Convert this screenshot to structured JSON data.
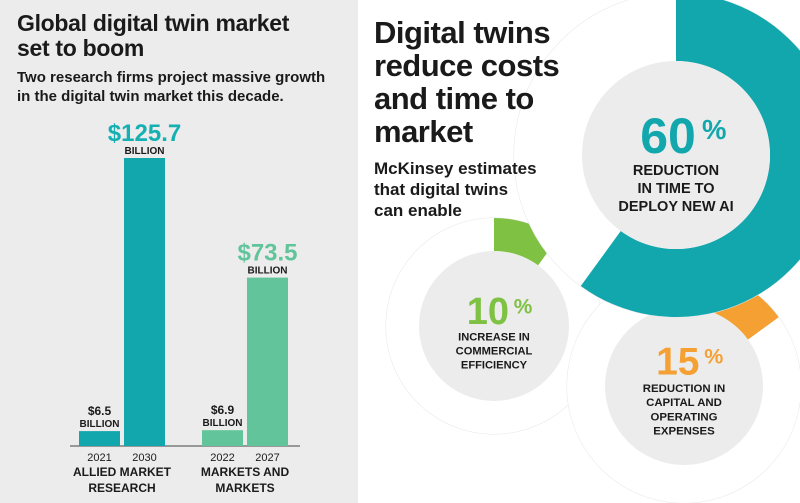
{
  "left": {
    "title_line1": "Global digital twin market",
    "title_line2": "set to boom",
    "subtitle_line1": "Two research firms project massive growth",
    "subtitle_line2": "in the digital twin market this decade."
  },
  "right": {
    "title_lines": [
      "Digital twins",
      "reduce costs",
      "and time to",
      "market"
    ],
    "subtitle_lines": [
      "McKinsey estimates",
      "that digital twins",
      "can enable"
    ]
  },
  "colors": {
    "teal": "#11a7ad",
    "teal_label": "#15b0b2",
    "mint": "#62c49b",
    "green": "#7ec143",
    "orange": "#f5a033",
    "panel_gray": "#ececec",
    "ring_track": "#ffffff"
  },
  "chart_data": [
    {
      "type": "bar",
      "groups": [
        {
          "name_lines": [
            "ALLIED MARKET",
            "RESEARCH"
          ],
          "bars": [
            {
              "year": "2021",
              "value": 6.5,
              "label_value": "$6.5",
              "label_unit": "BILLION"
            },
            {
              "year": "2030",
              "value": 125.7,
              "label_value": "$125.7",
              "label_unit": "BILLION"
            }
          ]
        },
        {
          "name_lines": [
            "MARKETS AND",
            "MARKETS"
          ],
          "bars": [
            {
              "year": "2022",
              "value": 6.9,
              "label_value": "$6.9",
              "label_unit": "BILLION"
            },
            {
              "year": "2027",
              "value": 73.5,
              "label_value": "$73.5",
              "label_unit": "BILLION"
            }
          ]
        }
      ],
      "ylim": [
        0,
        125.7
      ]
    },
    {
      "type": "pie",
      "style": "donut",
      "items": [
        {
          "percent": 60,
          "value_text": "60",
          "suffix": "%",
          "label_lines": [
            "REDUCTION",
            "IN TIME TO",
            "DEPLOY NEW AI"
          ],
          "color": "#11a7ad"
        },
        {
          "percent": 10,
          "value_text": "10",
          "suffix": "%",
          "label_lines": [
            "INCREASE IN",
            "COMMERCIAL",
            "EFFICIENCY"
          ],
          "color": "#7ec143"
        },
        {
          "percent": 15,
          "value_text": "15",
          "suffix": "%",
          "label_lines": [
            "REDUCTION IN",
            "CAPITAL AND",
            "OPERATING",
            "EXPENSES"
          ],
          "color": "#f5a033"
        }
      ]
    }
  ]
}
